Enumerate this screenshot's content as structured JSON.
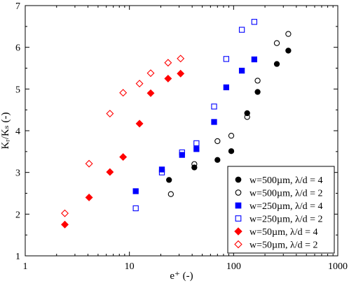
{
  "chart_data": {
    "type": "scatter",
    "title": "",
    "xlabel": "e⁺ (-)",
    "ylabel": "Kᵣ/Kₛ (-)",
    "x_scale": "log",
    "xlim": [
      1,
      1000
    ],
    "ylim": [
      1,
      7
    ],
    "x_ticks": [
      1,
      10,
      100,
      1000
    ],
    "x_tick_labels": [
      "1",
      "10",
      "100",
      "1000"
    ],
    "y_ticks": [
      1,
      2,
      3,
      4,
      5,
      6,
      7
    ],
    "y_tick_labels": [
      "1",
      "2",
      "3",
      "4",
      "5",
      "6",
      "7"
    ],
    "grid": false,
    "legend_position": "bottom-right",
    "series": [
      {
        "name": "w=500µm, λ/d = 4",
        "marker": "circle",
        "filled": true,
        "color": "#000000",
        "points": [
          [
            24,
            2.82
          ],
          [
            42,
            3.12
          ],
          [
            70,
            3.3
          ],
          [
            95,
            3.51
          ],
          [
            135,
            4.42
          ],
          [
            170,
            4.93
          ],
          [
            260,
            5.6
          ],
          [
            335,
            5.92
          ]
        ]
      },
      {
        "name": "w=500µm, λ/d = 2",
        "marker": "circle",
        "filled": false,
        "color": "#000000",
        "points": [
          [
            25,
            2.48
          ],
          [
            42,
            3.2
          ],
          [
            70,
            3.75
          ],
          [
            95,
            3.88
          ],
          [
            135,
            4.33
          ],
          [
            170,
            5.2
          ],
          [
            260,
            6.1
          ],
          [
            335,
            6.32
          ]
        ]
      },
      {
        "name": "w=250µm, λ/d = 4",
        "marker": "square",
        "filled": true,
        "color": "#0000ff",
        "points": [
          [
            11.5,
            2.55
          ],
          [
            20.5,
            3.07
          ],
          [
            32,
            3.42
          ],
          [
            44,
            3.56
          ],
          [
            65,
            4.21
          ],
          [
            85,
            5.04
          ],
          [
            120,
            5.44
          ],
          [
            158,
            5.71
          ]
        ]
      },
      {
        "name": "w=250µm, λ/d = 2",
        "marker": "square",
        "filled": false,
        "color": "#0000ff",
        "points": [
          [
            11.5,
            2.14
          ],
          [
            20.5,
            3.0
          ],
          [
            32,
            3.48
          ],
          [
            44,
            3.7
          ],
          [
            65,
            4.58
          ],
          [
            85,
            5.72
          ],
          [
            120,
            6.42
          ],
          [
            158,
            6.61
          ]
        ]
      },
      {
        "name": "w=50µm, λ/d = 4",
        "marker": "diamond",
        "filled": true,
        "color": "#ff0000",
        "points": [
          [
            2.4,
            1.75
          ],
          [
            4.1,
            2.4
          ],
          [
            6.5,
            3.01
          ],
          [
            8.7,
            3.37
          ],
          [
            12.5,
            4.17
          ],
          [
            16,
            4.9
          ],
          [
            23.5,
            5.25
          ],
          [
            31,
            5.37
          ]
        ]
      },
      {
        "name": "w=50µm, λ/d = 2",
        "marker": "diamond",
        "filled": false,
        "color": "#ff0000",
        "points": [
          [
            2.4,
            2.02
          ],
          [
            4.1,
            3.21
          ],
          [
            6.5,
            4.41
          ],
          [
            8.7,
            4.91
          ],
          [
            12.5,
            5.13
          ],
          [
            16,
            5.38
          ],
          [
            23.5,
            5.63
          ],
          [
            31,
            5.73
          ]
        ]
      }
    ]
  }
}
